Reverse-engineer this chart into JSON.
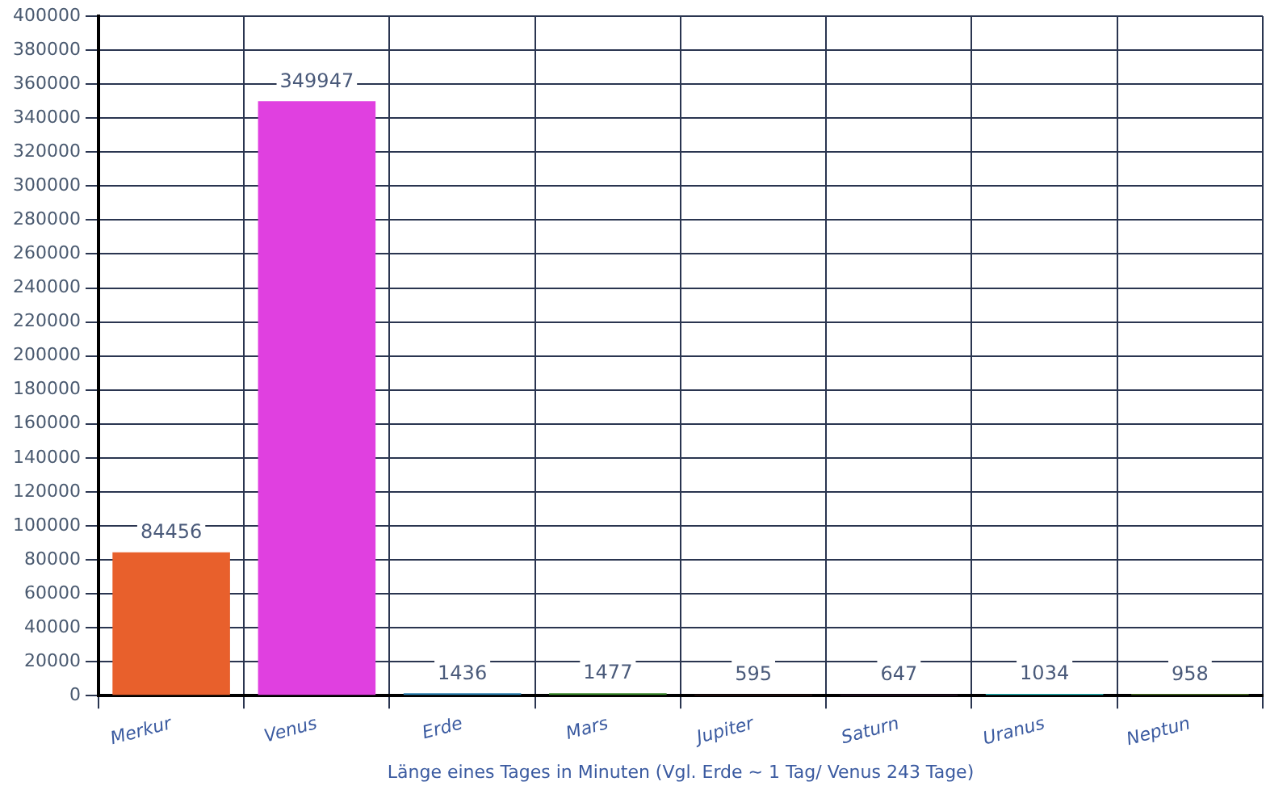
{
  "chart_data": {
    "type": "bar",
    "xlabel": "Länge eines Tages in Minuten (Vgl. Erde ~ 1 Tag/ Venus 243 Tage)",
    "categories": [
      "Merkur",
      "Venus",
      "Erde",
      "Mars",
      "Jupiter",
      "Saturn",
      "Uranus",
      "Neptun"
    ],
    "values": [
      84456,
      349947,
      1436,
      1477,
      595,
      647,
      1034,
      958
    ],
    "colors": [
      "#e8602c",
      "#e040e0",
      "#2a7fb0",
      "#3a8a2a",
      "#d05050",
      "#d050d0",
      "#20b0b0",
      "#5a8a2a"
    ],
    "ylim": [
      0,
      400000
    ],
    "yticks": [
      0,
      20000,
      40000,
      60000,
      80000,
      100000,
      120000,
      140000,
      160000,
      180000,
      200000,
      220000,
      240000,
      260000,
      280000,
      300000,
      320000,
      340000,
      360000,
      380000,
      400000
    ],
    "grid": true,
    "data_labels": true,
    "legend": false
  }
}
